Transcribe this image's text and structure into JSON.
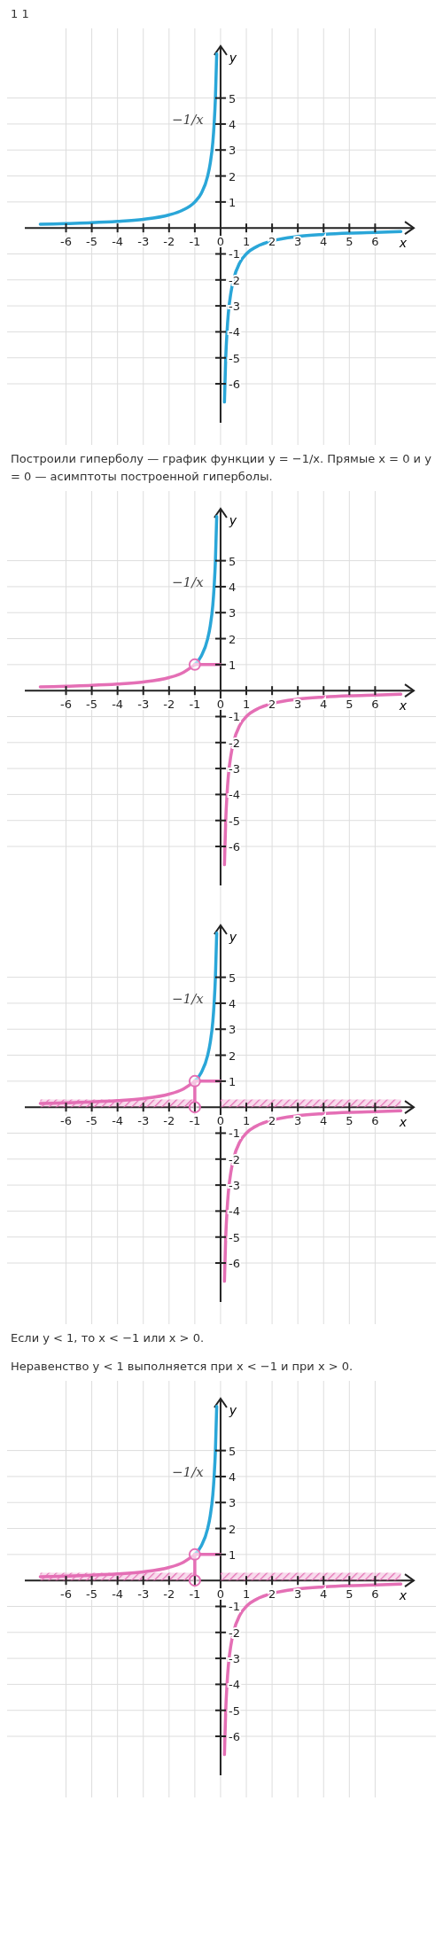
{
  "chart_data": [
    {
      "type": "line",
      "annotations": [
        "1    1"
      ],
      "xlabel": "x",
      "ylabel": "y",
      "xlim": [
        -7.6,
        7.5
      ],
      "ylim": [
        -7.5,
        7
      ],
      "xticks": [
        -6,
        -5,
        -4,
        -3,
        -2,
        -1,
        0,
        1,
        2,
        3,
        4,
        5,
        6
      ],
      "yticks": [
        -6,
        -5,
        -4,
        -3,
        -2,
        -1,
        1,
        2,
        3,
        4,
        5
      ],
      "grid": true,
      "series": [
        {
          "name": "−1/x",
          "color": "#2aa6d8",
          "x": [
            -7,
            -6,
            -5,
            -4,
            -3,
            -2,
            -1.5,
            -1,
            -0.75,
            -0.5,
            -0.4,
            -0.3,
            -0.25,
            -0.2,
            -0.15
          ],
          "values": [
            0.14,
            0.17,
            0.2,
            0.25,
            0.33,
            0.5,
            0.67,
            1,
            1.33,
            2,
            2.5,
            3.3,
            4,
            5,
            6.7
          ]
        },
        {
          "color": "#2aa6d8",
          "x": [
            0.15,
            0.2,
            0.25,
            0.3,
            0.4,
            0.5,
            0.75,
            1,
            1.5,
            2,
            3,
            4,
            5,
            6,
            7
          ],
          "values": [
            -6.7,
            -5,
            -4,
            -3.3,
            -2.5,
            -2,
            -1.33,
            -1,
            -0.67,
            -0.5,
            -0.33,
            -0.25,
            -0.2,
            -0.17,
            -0.14
          ]
        }
      ]
    },
    {
      "type": "line",
      "annotations": [
        "Построили гиперболу — график функции y = −1/x. Прямые x = 0 и y = 0 — асимптоты построенной гиперболы."
      ],
      "xlabel": "x",
      "ylabel": "y",
      "xlim": [
        -7.6,
        7.5
      ],
      "ylim": [
        -7.5,
        7
      ],
      "xticks": [
        -6,
        -5,
        -4,
        -3,
        -2,
        -1,
        0,
        1,
        2,
        3,
        4,
        5,
        6
      ],
      "yticks": [
        -6,
        -5,
        -4,
        -3,
        -2,
        -1,
        1,
        2,
        3,
        4,
        5
      ],
      "grid": true,
      "series": [
        {
          "name": "−1/x",
          "color": "#2aa6d8",
          "x": [
            -1,
            -0.75,
            -0.5,
            -0.4,
            -0.3,
            -0.25,
            -0.2,
            -0.15
          ],
          "values": [
            1,
            1.33,
            2,
            2.5,
            3.3,
            4,
            5,
            6.7
          ]
        },
        {
          "color": "#e46fb5",
          "x": [
            -7,
            -6,
            -5,
            -4,
            -3,
            -2,
            -1.5,
            -1
          ],
          "values": [
            0.14,
            0.17,
            0.2,
            0.25,
            0.33,
            0.5,
            0.67,
            1
          ]
        },
        {
          "color": "#e46fb5",
          "x": [
            0.15,
            0.2,
            0.25,
            0.3,
            0.4,
            0.5,
            0.75,
            1,
            1.5,
            2,
            3,
            4,
            5,
            6,
            7
          ],
          "values": [
            -6.7,
            -5,
            -4,
            -3.3,
            -2.5,
            -2,
            -1.33,
            -1,
            -0.67,
            -0.5,
            -0.33,
            -0.25,
            -0.2,
            -0.17,
            -0.14
          ]
        },
        {
          "color": "#e46fb5",
          "x": [
            -1,
            0
          ],
          "values": [
            1,
            1
          ]
        },
        {
          "type": "scatter",
          "marker": "circle",
          "color": "#e46fb5",
          "x": [
            -1
          ],
          "values": [
            1
          ]
        }
      ]
    },
    {
      "type": "line",
      "xlabel": "x",
      "ylabel": "y",
      "xlim": [
        -7.6,
        7.5
      ],
      "ylim": [
        -7.5,
        7
      ],
      "xticks": [
        -6,
        -5,
        -4,
        -3,
        -2,
        -1,
        0,
        1,
        2,
        3,
        4,
        5,
        6
      ],
      "yticks": [
        -6,
        -5,
        -4,
        -3,
        -2,
        -1,
        1,
        2,
        3,
        4,
        5
      ],
      "grid": true,
      "series": [
        {
          "type": "area",
          "color": "#e46fb5",
          "x": [
            -7,
            -1
          ],
          "values": [
            0.3,
            0.3
          ]
        },
        {
          "type": "area",
          "color": "#e46fb5",
          "x": [
            0,
            7
          ],
          "values": [
            0.3,
            0.3
          ]
        },
        {
          "name": "−1/x",
          "color": "#2aa6d8",
          "x": [
            -1,
            -0.75,
            -0.5,
            -0.4,
            -0.3,
            -0.25,
            -0.2,
            -0.15
          ],
          "values": [
            1,
            1.33,
            2,
            2.5,
            3.3,
            4,
            5,
            6.7
          ]
        },
        {
          "color": "#e46fb5",
          "x": [
            -7,
            -6,
            -5,
            -4,
            -3,
            -2,
            -1.5,
            -1
          ],
          "values": [
            0.14,
            0.17,
            0.2,
            0.25,
            0.33,
            0.5,
            0.67,
            1
          ]
        },
        {
          "color": "#e46fb5",
          "x": [
            0.15,
            0.2,
            0.25,
            0.3,
            0.4,
            0.5,
            0.75,
            1,
            1.5,
            2,
            3,
            4,
            5,
            6,
            7
          ],
          "values": [
            -6.7,
            -5,
            -4,
            -3.3,
            -2.5,
            -2,
            -1.33,
            -1,
            -0.67,
            -0.5,
            -0.33,
            -0.25,
            -0.2,
            -0.17,
            -0.14
          ]
        },
        {
          "color": "#e46fb5",
          "x": [
            -1,
            0
          ],
          "values": [
            1,
            1
          ]
        },
        {
          "color": "#e46fb5",
          "x": [
            -1,
            -1
          ],
          "values": [
            1,
            0
          ]
        },
        {
          "type": "scatter",
          "marker": "circle",
          "color": "#e46fb5",
          "x": [
            -1,
            -1
          ],
          "values": [
            1,
            0
          ]
        }
      ]
    },
    {
      "type": "line",
      "annotations": [
        "Если y < 1, то x < −1 или x > 0.",
        "Неравенство y < 1 выполняется при x < −1 и при x > 0."
      ],
      "xlabel": "x",
      "ylabel": "y",
      "xlim": [
        -7.6,
        7.5
      ],
      "ylim": [
        -7.5,
        7
      ],
      "xticks": [
        -6,
        -5,
        -4,
        -3,
        -2,
        -1,
        0,
        1,
        2,
        3,
        4,
        5,
        6
      ],
      "yticks": [
        -6,
        -5,
        -4,
        -3,
        -2,
        -1,
        1,
        2,
        3,
        4,
        5
      ],
      "grid": true,
      "series": [
        {
          "type": "area",
          "color": "#e46fb5",
          "x": [
            -7,
            -1
          ],
          "values": [
            0.3,
            0.3
          ]
        },
        {
          "type": "area",
          "color": "#e46fb5",
          "x": [
            0,
            7
          ],
          "values": [
            0.3,
            0.3
          ]
        },
        {
          "name": "−1/x",
          "color": "#2aa6d8",
          "x": [
            -1,
            -0.75,
            -0.5,
            -0.4,
            -0.3,
            -0.25,
            -0.2,
            -0.15
          ],
          "values": [
            1,
            1.33,
            2,
            2.5,
            3.3,
            4,
            5,
            6.7
          ]
        },
        {
          "color": "#e46fb5",
          "x": [
            -7,
            -6,
            -5,
            -4,
            -3,
            -2,
            -1.5,
            -1
          ],
          "values": [
            0.14,
            0.17,
            0.2,
            0.25,
            0.33,
            0.5,
            0.67,
            1
          ]
        },
        {
          "color": "#e46fb5",
          "x": [
            0.15,
            0.2,
            0.25,
            0.3,
            0.4,
            0.5,
            0.75,
            1,
            1.5,
            2,
            3,
            4,
            5,
            6,
            7
          ],
          "values": [
            -6.7,
            -5,
            -4,
            -3.3,
            -2.5,
            -2,
            -1.33,
            -1,
            -0.67,
            -0.5,
            -0.33,
            -0.25,
            -0.2,
            -0.17,
            -0.14
          ]
        },
        {
          "color": "#e46fb5",
          "x": [
            -1,
            0
          ],
          "values": [
            1,
            1
          ]
        },
        {
          "color": "#e46fb5",
          "x": [
            -1,
            -1
          ],
          "values": [
            1,
            0
          ]
        },
        {
          "type": "scatter",
          "marker": "circle",
          "color": "#e46fb5",
          "x": [
            -1,
            -1
          ],
          "values": [
            1,
            0
          ]
        }
      ]
    }
  ]
}
